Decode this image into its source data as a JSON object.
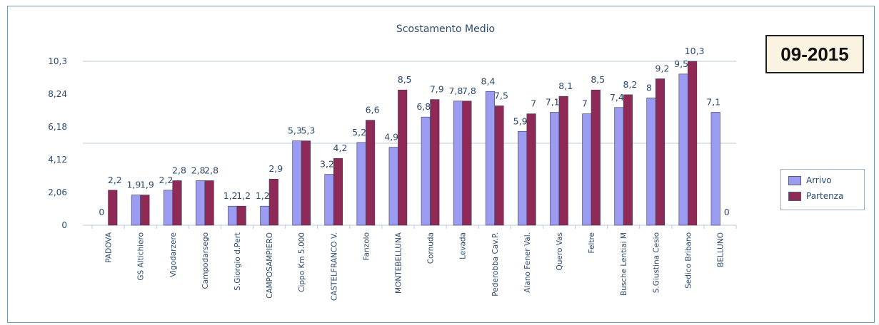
{
  "badge": {
    "text": "09-2015"
  },
  "colors": {
    "arrivo": "#9b9bf2",
    "partenza": "#8f2a56",
    "text": "#2c4a6e",
    "grid": "#b8c9d8"
  },
  "chart_data": {
    "type": "bar",
    "title": "Scostamento Medio",
    "xlabel": "",
    "ylabel": "",
    "ylim": [
      0,
      10.3
    ],
    "yticks": [
      "0",
      "2,06",
      "4,12",
      "6,18",
      "8,24",
      "10,3"
    ],
    "ytick_values": [
      0,
      2.06,
      4.12,
      6.18,
      8.24,
      10.3
    ],
    "gridlines_at": [
      5.15,
      10.3
    ],
    "legend_position": "right",
    "categories": [
      "PADOVA",
      "GS Altichiero",
      "Vigodarzere",
      "Campodarsego",
      "S.Giorgio d.Pert",
      "CAMPOSAMPIERO",
      "Cippo Km 5.000",
      "CASTELFRANCO V.",
      "Fanzolo",
      "MONTEBELLUNA",
      "Cornuda",
      "Levada",
      "Pederobba Cav.P.",
      "Alano Fener Val.",
      "Quero Vas",
      "Feltre",
      "Busche Lentiai M",
      "S.Giustina Cesio",
      "Sedico Bribano",
      "BELLUNO"
    ],
    "series": [
      {
        "name": "Arrivo",
        "values": [
          0,
          1.9,
          2.2,
          2.8,
          1.2,
          1.2,
          5.3,
          3.2,
          5.2,
          4.9,
          6.8,
          7.8,
          8.4,
          5.9,
          7.1,
          7,
          7.4,
          8,
          9.5,
          7.1
        ],
        "labels": [
          "0",
          "1,9",
          "2,2",
          "2,8",
          "1,2",
          "1,2",
          "5,3",
          "3,2",
          "5,2",
          "4,9",
          "6,8",
          "7,8",
          "8,4",
          "5,9",
          "7,1",
          "7",
          "7,4",
          "8",
          "9,5",
          "7,1"
        ]
      },
      {
        "name": "Partenza",
        "values": [
          2.2,
          1.9,
          2.8,
          2.8,
          1.2,
          2.9,
          5.3,
          4.2,
          6.6,
          8.5,
          7.9,
          7.8,
          7.5,
          7,
          8.1,
          8.5,
          8.2,
          9.2,
          10.3,
          0
        ],
        "labels": [
          "2,2",
          "1,9",
          "2,8",
          "2,8",
          "1,2",
          "2,9",
          "5,3",
          "4,2",
          "6,6",
          "8,5",
          "7,9",
          "7,8",
          "7,5",
          "7",
          "8,1",
          "8,5",
          "8,2",
          "9,2",
          "10,3",
          "0"
        ]
      }
    ]
  }
}
